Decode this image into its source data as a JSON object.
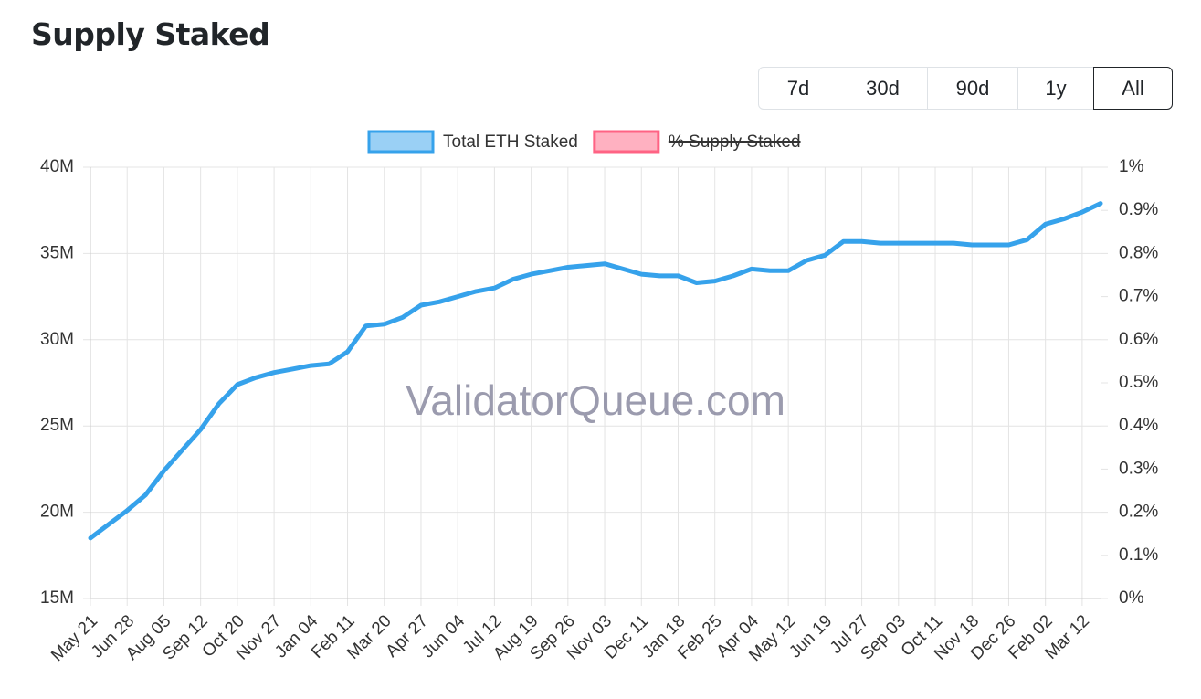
{
  "title": "Supply Staked",
  "range_buttons": [
    "7d",
    "30d",
    "90d",
    "1y",
    "All"
  ],
  "selected_range": 4,
  "chart_data": {
    "type": "line",
    "watermark": "ValidatorQueue.com",
    "categories": [
      "May 21",
      null,
      "Jun 28",
      null,
      "Aug 05",
      null,
      "Sep 12",
      null,
      "Oct 20",
      null,
      "Nov 27",
      null,
      "Jan 04",
      null,
      "Feb 11",
      null,
      "Mar 20",
      null,
      "Apr 27",
      null,
      "Jun 04",
      null,
      "Jul 12",
      null,
      "Aug 19",
      null,
      "Sep 26",
      null,
      "Nov 03",
      null,
      "Dec 11",
      null,
      "Jan 18",
      null,
      "Feb 25",
      null,
      "Apr 04",
      null,
      "May 12",
      null,
      "Jun 19",
      null,
      "Jul 27",
      null,
      "Sep 03",
      null,
      "Oct 11",
      null,
      "Nov 18",
      null,
      "Dec 26",
      null,
      "Feb 02",
      null,
      "Mar 12",
      null
    ],
    "series": [
      {
        "name": "Total ETH Staked",
        "color": "#36a2eb",
        "axis": "y",
        "values": [
          18500000,
          19300000,
          20100000,
          21000000,
          22400000,
          23600000,
          24800000,
          26300000,
          27400000,
          27800000,
          28100000,
          28300000,
          28500000,
          28600000,
          29300000,
          30800000,
          30900000,
          31300000,
          32000000,
          32200000,
          32500000,
          32800000,
          33000000,
          33500000,
          33800000,
          34000000,
          34200000,
          34300000,
          34400000,
          34100000,
          33800000,
          33700000,
          33700000,
          33300000,
          33400000,
          33700000,
          34100000,
          34000000,
          34000000,
          34600000,
          34900000,
          35700000,
          35700000,
          35600000,
          35600000,
          35600000,
          35600000,
          35600000,
          35500000,
          35500000,
          35500000,
          35800000,
          36700000,
          37000000,
          37400000,
          37900000
        ]
      },
      {
        "name": "% Supply Staked",
        "color": "#ff6384",
        "axis": "y2",
        "hidden": true
      }
    ],
    "ylim": [
      15000000,
      40000000
    ],
    "yticks": [
      {
        "value": 15000000,
        "label": "15M"
      },
      {
        "value": 20000000,
        "label": "20M"
      },
      {
        "value": 25000000,
        "label": "25M"
      },
      {
        "value": 30000000,
        "label": "30M"
      },
      {
        "value": 35000000,
        "label": "35M"
      },
      {
        "value": 40000000,
        "label": "40M"
      }
    ],
    "y2lim": [
      0,
      1
    ],
    "y2ticks": [
      {
        "value": 0,
        "label": "0%"
      },
      {
        "value": 0.1,
        "label": "0.1%"
      },
      {
        "value": 0.2,
        "label": "0.2%"
      },
      {
        "value": 0.3,
        "label": "0.3%"
      },
      {
        "value": 0.4,
        "label": "0.4%"
      },
      {
        "value": 0.5,
        "label": "0.5%"
      },
      {
        "value": 0.6,
        "label": "0.6%"
      },
      {
        "value": 0.7,
        "label": "0.7%"
      },
      {
        "value": 0.8,
        "label": "0.8%"
      },
      {
        "value": 0.9,
        "label": "0.9%"
      },
      {
        "value": 1,
        "label": "1%"
      }
    ],
    "grid": true,
    "legend": "top"
  }
}
